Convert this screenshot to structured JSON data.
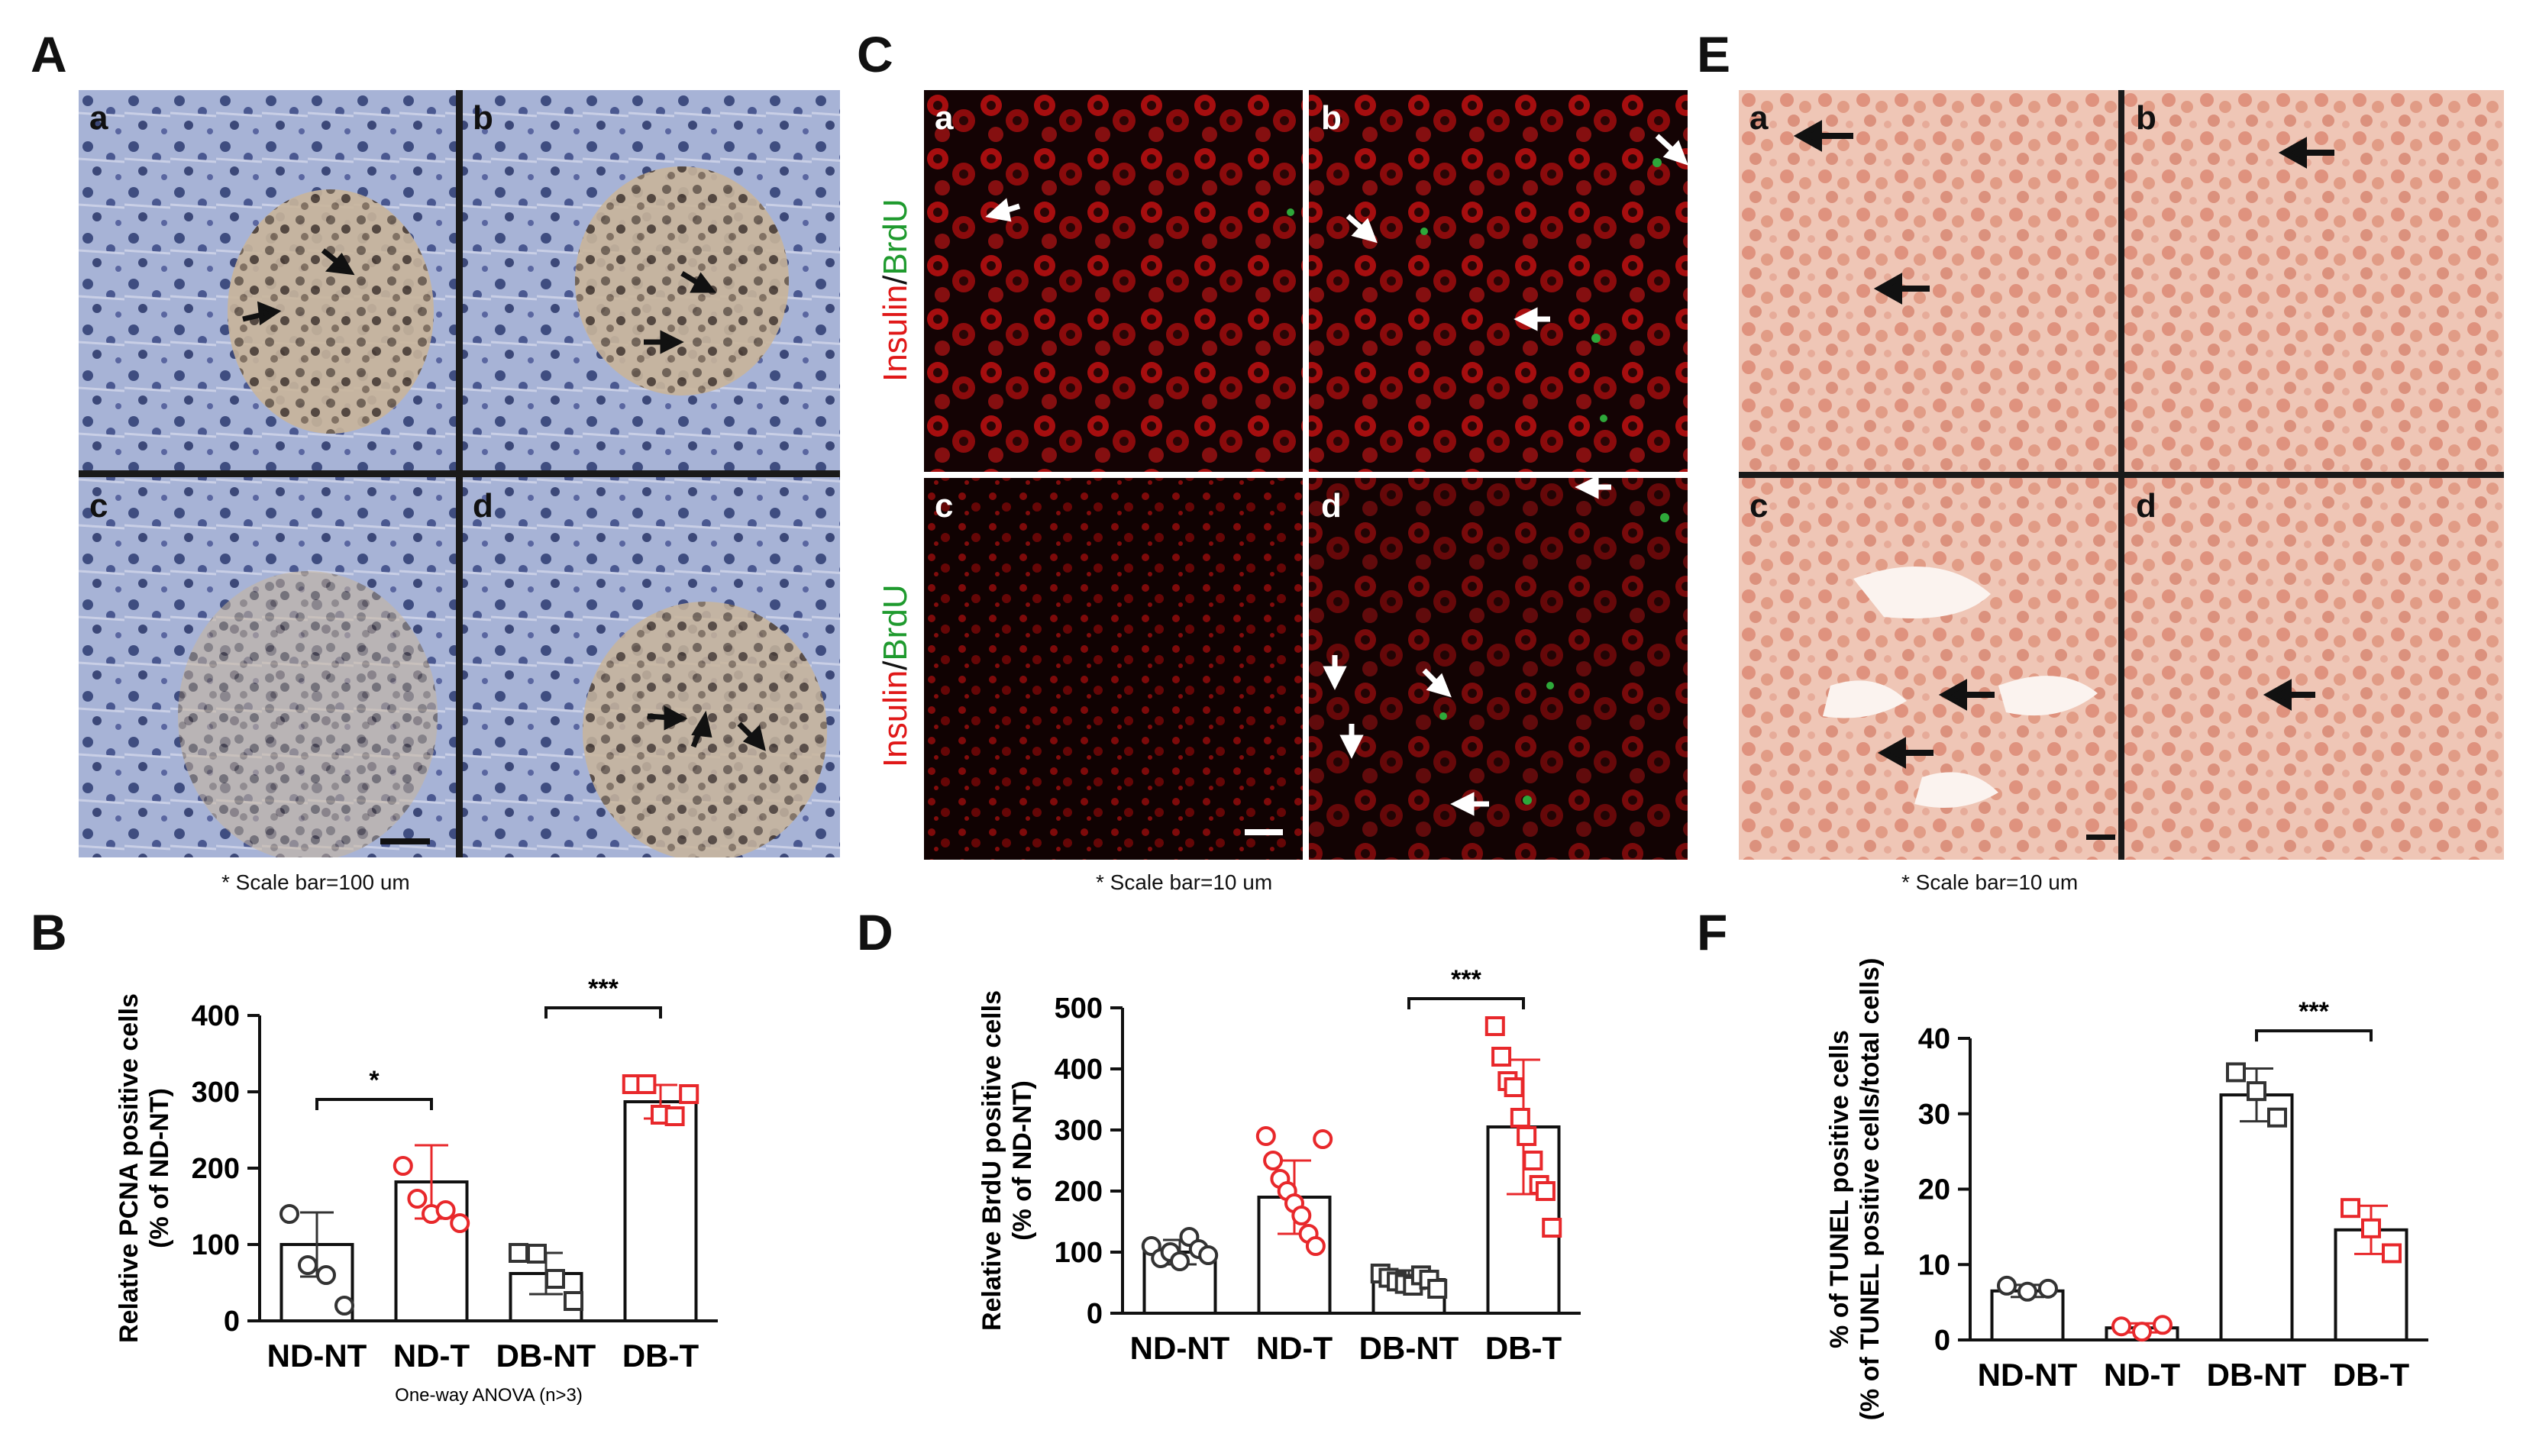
{
  "figure": {
    "panels": {
      "A": {
        "letter": "A",
        "sub_labels": [
          "a",
          "b",
          "c",
          "d"
        ],
        "caption": "* Scale bar=100 um"
      },
      "C": {
        "letter": "C",
        "sub_labels": [
          "a",
          "b",
          "c",
          "d"
        ],
        "caption": "* Scale bar=10 um",
        "stain_label_insulin": "Insulin",
        "stain_label_sep": "/",
        "stain_label_brdu": "BrdU"
      },
      "E": {
        "letter": "E",
        "sub_labels": [
          "a",
          "b",
          "c",
          "d"
        ],
        "caption": "* Scale bar=10 um"
      },
      "B": {
        "letter": "B"
      },
      "D": {
        "letter": "D"
      },
      "F": {
        "letter": "F"
      }
    },
    "colors": {
      "nd_marker": "#333333",
      "treated_marker": "#e8282b",
      "db_marker": "#333333"
    }
  },
  "chart_data": [
    {
      "id": "B",
      "type": "bar",
      "categories": [
        "ND-NT",
        "ND-T",
        "DB-NT",
        "DB-T"
      ],
      "values": [
        100,
        182,
        62,
        287
      ],
      "errors": [
        42,
        48,
        27,
        22
      ],
      "points": [
        [
          140,
          73,
          60,
          20
        ],
        [
          203,
          160,
          140,
          145,
          128
        ],
        [
          89,
          88,
          55,
          26
        ],
        [
          310,
          310,
          270,
          268,
          297
        ]
      ],
      "marker_shapes": [
        "circle",
        "circle",
        "square",
        "square"
      ],
      "marker_colors": [
        "#333333",
        "#e8282b",
        "#333333",
        "#e8282b"
      ],
      "ylabel_line1": "Relative PCNA positive cells",
      "ylabel_line2": "(% of ND-NT)",
      "yticks": [
        0,
        100,
        200,
        300,
        400
      ],
      "ylim": [
        0,
        400
      ],
      "note": "One-way ANOVA (n>3)",
      "significance": [
        {
          "from": 0,
          "to": 1,
          "label": "*",
          "y": 290
        },
        {
          "from": 2,
          "to": 3,
          "label": "***",
          "y": 410
        }
      ]
    },
    {
      "id": "D",
      "type": "bar",
      "categories": [
        "ND-NT",
        "ND-T",
        "DB-NT",
        "DB-T"
      ],
      "values": [
        100,
        190,
        55,
        305
      ],
      "errors": [
        20,
        60,
        15,
        110
      ],
      "points": [
        [
          110,
          90,
          100,
          85,
          125,
          105,
          95
        ],
        [
          290,
          250,
          220,
          200,
          180,
          160,
          130,
          110,
          285
        ],
        [
          65,
          58,
          52,
          48,
          45,
          62,
          55,
          40
        ],
        [
          470,
          420,
          380,
          370,
          320,
          290,
          250,
          210,
          200,
          140
        ]
      ],
      "marker_shapes": [
        "circle",
        "circle",
        "square",
        "square"
      ],
      "marker_colors": [
        "#333333",
        "#e8282b",
        "#333333",
        "#e8282b"
      ],
      "ylabel_line1": "Relative BrdU positive cells",
      "ylabel_line2": "(% of ND-NT)",
      "yticks": [
        0,
        100,
        200,
        300,
        400,
        500
      ],
      "ylim": [
        0,
        500
      ],
      "significance": [
        {
          "from": 2,
          "to": 3,
          "label": "***",
          "y": 515
        }
      ]
    },
    {
      "id": "F",
      "type": "bar",
      "categories": [
        "ND-NT",
        "ND-T",
        "DB-NT",
        "DB-T"
      ],
      "values": [
        6.5,
        1.6,
        32.5,
        14.6
      ],
      "errors": [
        0.8,
        0.6,
        3.5,
        3.2
      ],
      "points": [
        [
          7.2,
          6.4,
          6.8
        ],
        [
          1.8,
          1.1,
          2.0
        ],
        [
          35.5,
          33.0,
          29.5
        ],
        [
          17.5,
          14.8,
          11.5
        ]
      ],
      "marker_shapes": [
        "circle",
        "circle",
        "square",
        "square"
      ],
      "marker_colors": [
        "#333333",
        "#e8282b",
        "#333333",
        "#e8282b"
      ],
      "ylabel_line1": "% of TUNEL positive cells",
      "ylabel_line2": "(% of TUNEL positive cells/total cells)",
      "yticks": [
        0,
        10,
        20,
        30,
        40
      ],
      "ylim": [
        0,
        40
      ],
      "significance": [
        {
          "from": 2,
          "to": 3,
          "label": "***",
          "y": 41
        }
      ]
    }
  ]
}
